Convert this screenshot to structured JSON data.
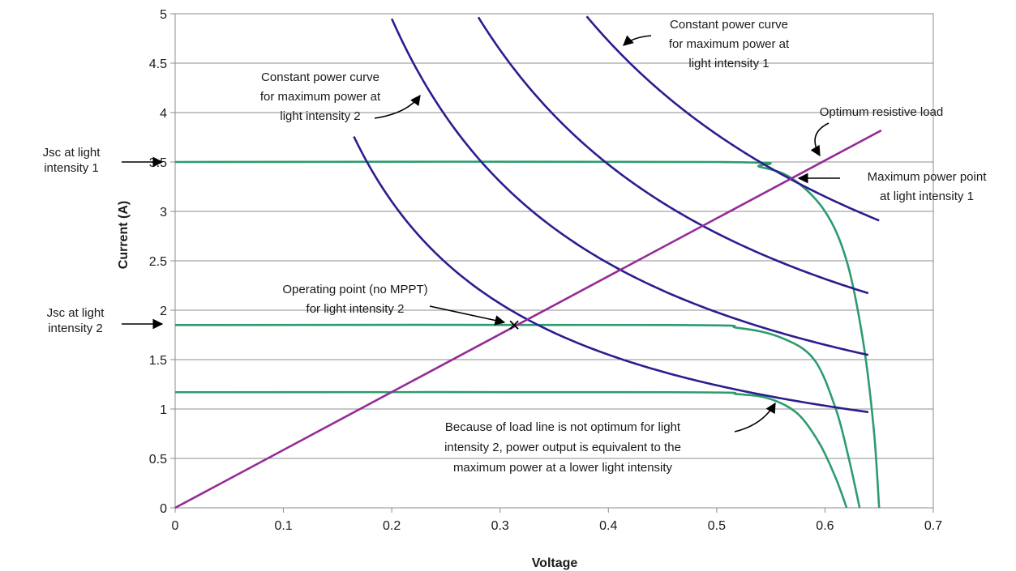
{
  "chart_data": {
    "type": "line",
    "xlabel": "Voltage",
    "ylabel": "Current (A)",
    "xlim": [
      0,
      0.7
    ],
    "ylim": [
      0,
      5
    ],
    "x_ticks": [
      "0",
      "0.1",
      "0.2",
      "0.3",
      "0.4",
      "0.5",
      "0.6",
      "0.7"
    ],
    "y_ticks": [
      "0",
      "0.5",
      "1",
      "1.5",
      "2",
      "2.5",
      "3",
      "3.5",
      "4",
      "4.5",
      "5"
    ],
    "grid": "horizontal",
    "colors": {
      "iv": "#2e9b6e",
      "power": "#2a1e8e",
      "load": "#962a96"
    },
    "iv_curves": [
      {
        "isc": 3.5,
        "voc": 0.65,
        "v": [
          0,
          0.5,
          0.54,
          0.57,
          0.6,
          0.62,
          0.635,
          0.645,
          0.65
        ],
        "i": [
          3.5,
          3.5,
          3.45,
          3.33,
          3.0,
          2.5,
          1.7,
          0.8,
          0.0
        ]
      },
      {
        "isc": 1.85,
        "voc": 0.632,
        "v": [
          0,
          0.46,
          0.52,
          0.56,
          0.59,
          0.61,
          0.622,
          0.632
        ],
        "i": [
          1.85,
          1.85,
          1.82,
          1.72,
          1.5,
          1.0,
          0.5,
          0.0
        ]
      },
      {
        "isc": 1.17,
        "voc": 0.62,
        "v": [
          0,
          0.46,
          0.52,
          0.55,
          0.575,
          0.595,
          0.61,
          0.62
        ],
        "i": [
          1.17,
          1.17,
          1.15,
          1.1,
          0.95,
          0.65,
          0.3,
          0.0
        ]
      }
    ],
    "power_curves": [
      {
        "power": 1.89,
        "v_range": [
          0.38,
          0.65
        ]
      },
      {
        "power": 1.39,
        "v_range": [
          0.28,
          0.64
        ]
      },
      {
        "power": 0.99,
        "v_range": [
          0.2,
          0.64
        ]
      },
      {
        "power": 0.62,
        "v_range": [
          0.165,
          0.64
        ]
      }
    ],
    "load_line": {
      "x": [
        0,
        0.652
      ],
      "y": [
        0,
        3.82
      ]
    },
    "operating_point": {
      "x": 0.313,
      "y": 1.85,
      "marker": "x"
    },
    "annotations": {
      "jsc1": [
        "Jsc at light",
        "intensity 1"
      ],
      "jsc2": [
        "Jsc at light",
        "intensity 2"
      ],
      "cp1": [
        "Constant power curve",
        "for maximum power at",
        "light intensity 1"
      ],
      "cp2": [
        "Constant power curve",
        "for maximum power at",
        "light intensity 2"
      ],
      "load": [
        "Optimum resistive load"
      ],
      "mpp": [
        "Maximum power point",
        "at light intensity 1"
      ],
      "op": [
        "Operating point (no MPPT)",
        "for light intensity 2"
      ],
      "because": [
        "Because of load line is not optimum for light",
        "intensity 2, power output is equivalent to the",
        "maximum power at a lower light intensity"
      ]
    }
  }
}
